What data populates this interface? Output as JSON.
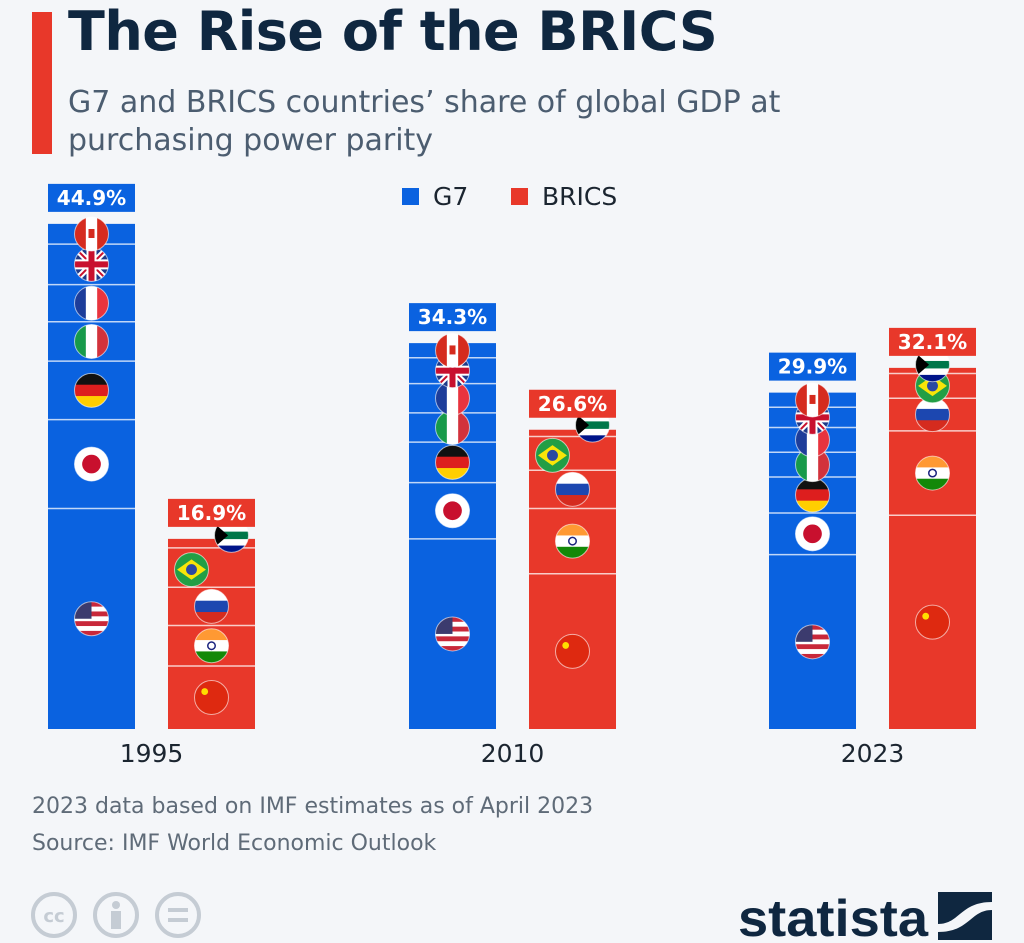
{
  "header": {
    "title": "The Rise of the BRICS",
    "subtitle": "G7 and BRICS countries’ share of global GDP at purchasing power parity"
  },
  "footer": {
    "note": "2023 data based on IMF estimates as of April 2023",
    "source": "Source: IMF World Economic Outlook",
    "brand": "statista",
    "license_icons": [
      "cc-icon",
      "attribution-icon",
      "no-derivatives-icon"
    ]
  },
  "chart_data": {
    "type": "bar",
    "stacked": true,
    "title": "",
    "xlabel": "",
    "ylabel": "",
    "ylim": [
      0,
      45
    ],
    "grid": false,
    "legend": {
      "position": "top",
      "entries": [
        "G7",
        "BRICS"
      ]
    },
    "categories": [
      "1995",
      "2010",
      "2023"
    ],
    "colors": {
      "G7": "#0a62e0",
      "BRICS": "#e8382a"
    },
    "series": [
      {
        "name": "G7",
        "totals": [
          44.9,
          34.3,
          29.9
        ],
        "total_labels": [
          "44.9%",
          "34.3%",
          "29.9%"
        ],
        "segments": [
          {
            "country_icon": "us-flag-icon",
            "values": [
              19.6,
              16.9,
              15.5
            ]
          },
          {
            "country_icon": "japan-flag-icon",
            "values": [
              7.9,
              5.0,
              3.7
            ]
          },
          {
            "country_icon": "germany-flag-icon",
            "values": [
              5.2,
              3.6,
              3.2
            ]
          },
          {
            "country_icon": "italy-flag-icon",
            "values": [
              3.5,
              2.6,
              2.2
            ]
          },
          {
            "country_icon": "france-flag-icon",
            "values": [
              3.3,
              2.6,
              2.2
            ]
          },
          {
            "country_icon": "uk-flag-icon",
            "values": [
              3.6,
              2.3,
              1.8
            ]
          },
          {
            "country_icon": "canada-flag-icon",
            "values": [
              1.8,
              1.3,
              1.3
            ]
          }
        ]
      },
      {
        "name": "BRICS",
        "totals": [
          16.9,
          26.6,
          32.1
        ],
        "total_labels": [
          "16.9%",
          "26.6%",
          "32.1%"
        ],
        "segments": [
          {
            "country_icon": "china-flag-icon",
            "values": [
              5.6,
              13.8,
              19.0
            ]
          },
          {
            "country_icon": "india-flag-icon",
            "values": [
              3.6,
              5.8,
              7.5
            ]
          },
          {
            "country_icon": "russia-flag-icon",
            "values": [
              3.4,
              3.4,
              2.9
            ]
          },
          {
            "country_icon": "brazil-flag-icon",
            "values": [
              3.5,
              3.0,
              2.2
            ]
          },
          {
            "country_icon": "south-africa-flag-icon",
            "values": [
              0.8,
              0.6,
              0.5
            ]
          }
        ]
      }
    ]
  }
}
